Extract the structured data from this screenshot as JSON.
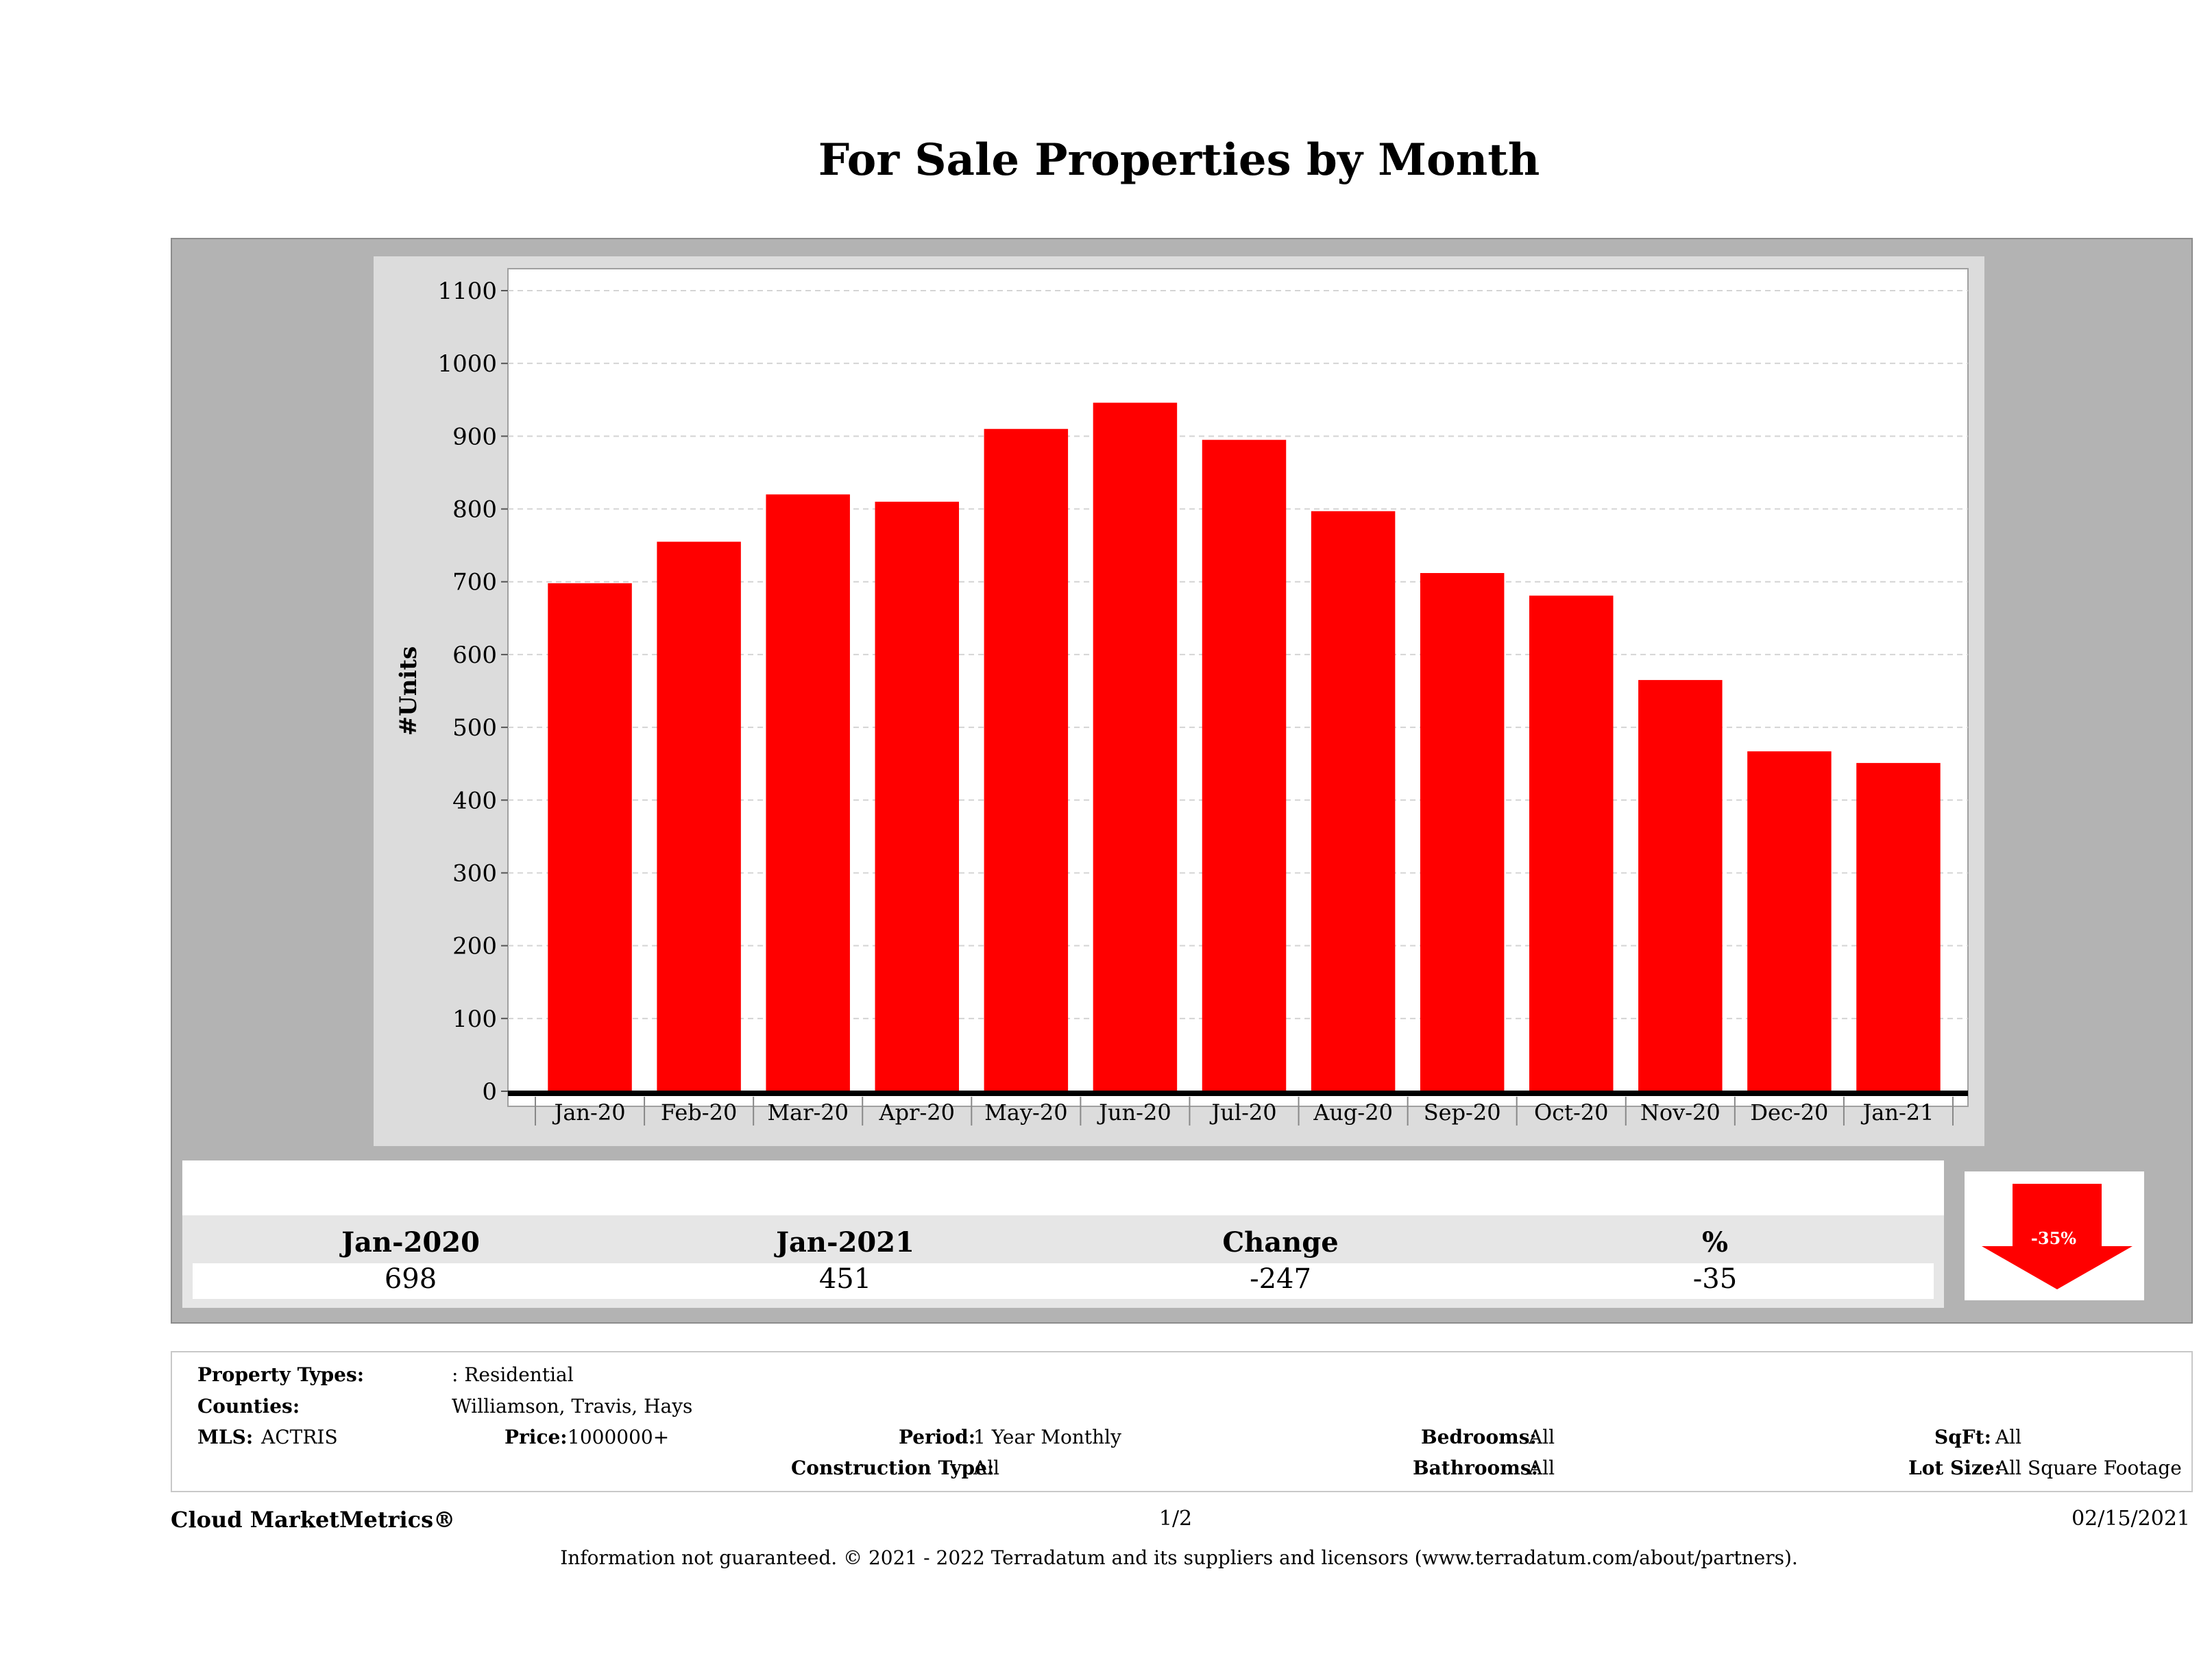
{
  "page": {
    "title": "For Sale Properties by Month"
  },
  "chart_data": {
    "type": "bar",
    "categories": [
      "Jan-20",
      "Feb-20",
      "Mar-20",
      "Apr-20",
      "May-20",
      "Jun-20",
      "Jul-20",
      "Aug-20",
      "Sep-20",
      "Oct-20",
      "Nov-20",
      "Dec-20",
      "Jan-21"
    ],
    "values": [
      698,
      755,
      820,
      810,
      910,
      946,
      895,
      797,
      712,
      681,
      565,
      467,
      451
    ],
    "ylabel": "#Units",
    "ylim": [
      0,
      1100
    ],
    "yticks": [
      0,
      100,
      200,
      300,
      400,
      500,
      600,
      700,
      800,
      900,
      1000,
      1100
    ],
    "grid": true,
    "bar_color": "#ff0000"
  },
  "summary": {
    "col1": {
      "header": "Jan-2020",
      "value": "698"
    },
    "col2": {
      "header": "Jan-2021",
      "value": "451"
    },
    "col3": {
      "header": "Change",
      "value": "-247"
    },
    "col4": {
      "header": "%",
      "value": "-35"
    },
    "arrow_label": "-35%",
    "arrow_color": "#ff0000",
    "arrow_direction": "down"
  },
  "criteria": {
    "property_types_label": "Property Types:",
    "property_types_value": ": Residential",
    "counties_label": "Counties:",
    "counties_value": "Williamson, Travis, Hays",
    "mls_label": "MLS:",
    "mls_value": "ACTRIS",
    "price_label": "Price:",
    "price_value": "1000000+",
    "period_label": "Period:",
    "period_value": "1 Year Monthly",
    "construction_label": "Construction Type:",
    "construction_value": "All",
    "bedrooms_label": "Bedrooms:",
    "bedrooms_value": "All",
    "bathrooms_label": "Bathrooms:",
    "bathrooms_value": "All",
    "sqft_label": "SqFt:",
    "sqft_value": "All",
    "lot_size_label": "Lot Size:",
    "lot_size_value": "All Square Footage"
  },
  "footer": {
    "brand": "Cloud MarketMetrics®",
    "page_number": "1/2",
    "date": "02/15/2021",
    "disclaimer": "Information not guaranteed. © 2021 - 2022 Terradatum and its suppliers and licensors (www.terradatum.com/about/partners)."
  }
}
